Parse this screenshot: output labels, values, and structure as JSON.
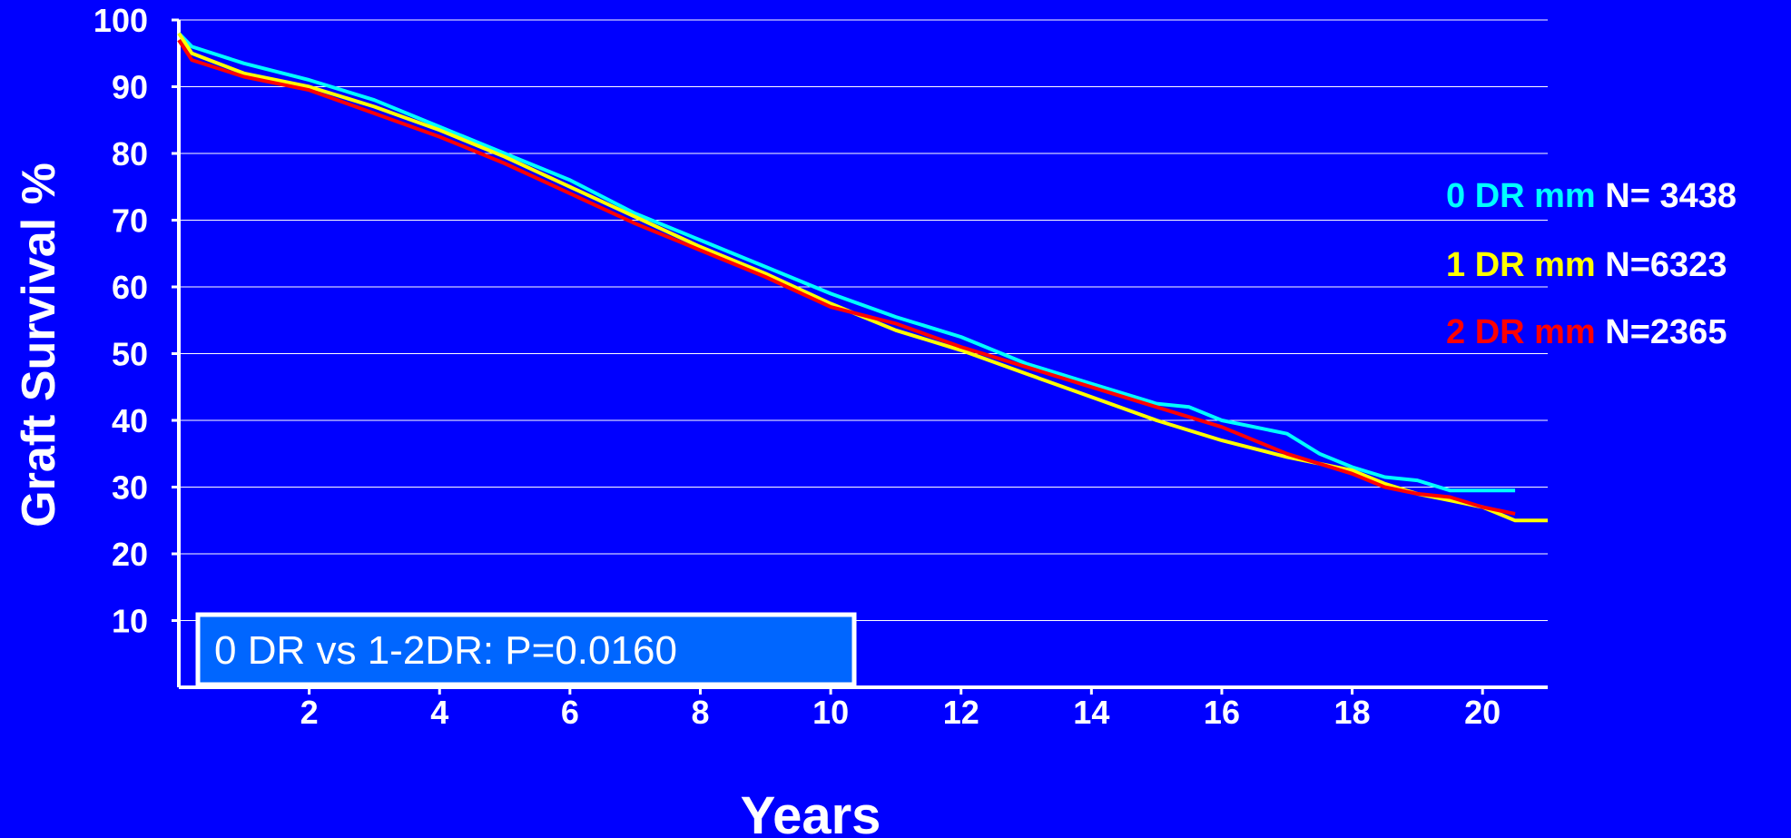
{
  "chart_data": {
    "type": "line",
    "title": "",
    "xlabel": "Years",
    "ylabel": "Graft Survival %",
    "xlim": [
      0,
      21
    ],
    "ylim": [
      0,
      100
    ],
    "x_ticks": [
      2,
      4,
      6,
      8,
      10,
      12,
      14,
      16,
      18,
      20
    ],
    "y_ticks": [
      10,
      20,
      30,
      40,
      50,
      60,
      70,
      80,
      90,
      100
    ],
    "grid": "horizontal",
    "legend_position": "right",
    "series": [
      {
        "name": "0 DR mm",
        "n_label": "N= 3438",
        "color": "#00ffff",
        "x": [
          0,
          0.2,
          1,
          2,
          3,
          4,
          5,
          6,
          7,
          8,
          9,
          10,
          11,
          12,
          13,
          14,
          15,
          15.5,
          16,
          16.5,
          17,
          17.5,
          18,
          18.5,
          19,
          19.5,
          20,
          20.5
        ],
        "y": [
          98,
          96,
          93.5,
          91,
          88,
          84,
          80,
          76,
          71,
          67,
          63,
          59,
          55.5,
          52.5,
          48.5,
          45.5,
          42.5,
          42,
          40,
          39,
          38,
          35,
          33,
          31.5,
          31,
          29.5,
          29.5,
          29.5
        ]
      },
      {
        "name": "1 DR mm",
        "n_label": "N=6323",
        "color": "#ffff00",
        "x": [
          0,
          0.2,
          1,
          2,
          3,
          4,
          5,
          6,
          7,
          8,
          9,
          10,
          11,
          12,
          13,
          14,
          15,
          16,
          17,
          18,
          18.5,
          19,
          19.5,
          20,
          20.5,
          21
        ],
        "y": [
          98,
          95,
          92,
          90,
          87,
          83.5,
          79.5,
          75,
          70.5,
          66,
          62,
          57.5,
          53.5,
          50.5,
          47,
          43.5,
          40,
          37,
          34.5,
          32.5,
          30.5,
          29,
          28,
          27,
          25,
          25
        ]
      },
      {
        "name": "2 DR mm",
        "n_label": "N=2365",
        "color": "#ff0000",
        "x": [
          0,
          0.2,
          1,
          2,
          3,
          4,
          5,
          6,
          7,
          8,
          9,
          10,
          11,
          12,
          13,
          14,
          15,
          16,
          17,
          18,
          18.5,
          19,
          19.5,
          20,
          20.5
        ],
        "y": [
          97,
          94,
          91.5,
          89.5,
          86,
          82.5,
          78.5,
          74,
          69.5,
          65.5,
          61.5,
          57,
          54.5,
          51,
          48,
          45,
          42,
          39,
          35,
          32,
          30,
          29,
          28.5,
          27,
          26
        ]
      }
    ],
    "annotation": "0 DR vs 1-2DR: P=0.0160"
  }
}
